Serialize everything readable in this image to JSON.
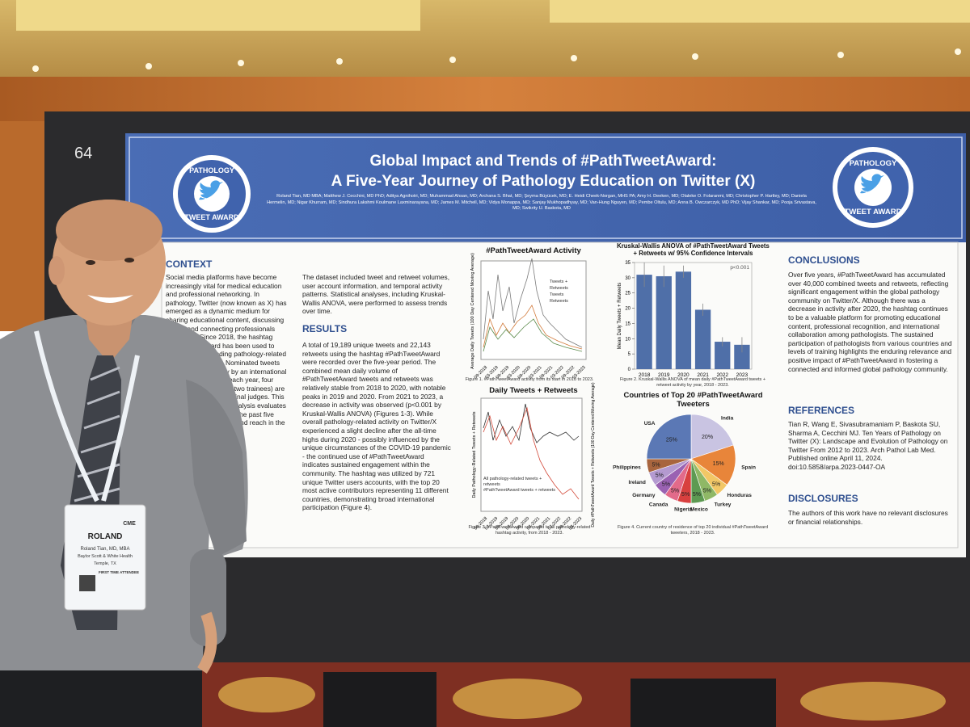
{
  "poster": {
    "number": "64",
    "title_line1": "Global Impact and Trends of #PathTweetAward:",
    "title_line2": "A Five-Year Journey of Pathology Education on Twitter (X)",
    "authors": "Roland Tian, MD MBA; Matthew J. Cecchini, MD PhD; Aditya Agnihotri, MD; Muhammad Ahsan, MD; Archana S. Bhat, MD; Şeyma Büyücek, MD; E. Heidi Cheek-Norgan, MHS PA; Amy H. Deeken, MD; Olaleke O. Folaranmi, MD; Christopher P. Hartley, MD; Daniela Hermelin, MD; Nigar Khurram, MD; Sindhura Lakshmi Koulmane Laxminarayana, MD; James M. Mitchell, MD; Vidya Monappa, MD; Sanjay Mukhopadhyay, MD; Van-Hung Nguyen, MD; Pembe Oltulu, MD; Anna B. Owczarczyk, MD PhD; Vijay Shankar, MD; Pooja Srivastava, MD; Swikrity U. Baskota, MD",
    "logo_top": "PATHOLOGY",
    "logo_bottom": "TWEET AWARD"
  },
  "sections": {
    "context_head": "CONTEXT",
    "context_text": "Social media platforms have become increasingly vital for medical education and professional networking. In pathology, Twitter (now known as X) has emerged as a dynamic medium for sharing educational content, discussing cases, and connecting professionals worldwide. Since 2018, the hashtag #PathTweetAward has been used to recognize outstanding pathology-related educational tweets. Nominated tweets are evaluated weekly by an international panel of judges, and each year, four winners (category and two trainees) are selected by a panel of final judges. This comprehensive trend analysis evaluates #PathTweetAward over the past five years, its global impact and reach in the pathology community.",
    "methods_text": "The dataset included tweet and retweet volumes, user account information, and temporal activity patterns. Statistical analyses, including Kruskal-Wallis ANOVA, were performed to assess trends over time.",
    "results_head": "RESULTS",
    "results_text": "A total of 19,189 unique tweets and 22,143 retweets using the hashtag #PathTweetAward were recorded over the five-year period. The combined mean daily volume of #PathTweetAward tweets and retweets was relatively stable from 2018 to 2020, with notable peaks in 2019 and 2020. From 2021 to 2023, a decrease in activity was observed (p<0.001 by Kruskal-Wallis ANOVA) (Figures 1-3). While overall pathology-related activity on Twitter/X experienced a slight decline after the all-time highs during 2020 - possibly influenced by the unique circumstances of the COVID-19 pandemic - the continued use of #PathTweetAward indicates sustained engagement within the community. The hashtag was utilized by 721 unique Twitter users accounts, with the top 20 most active contributors representing 11 different countries, demonstrating broad international participation (Figure 4).",
    "conclusions_head": "CONCLUSIONS",
    "conclusions_text": "Over five years, #PathTweetAward has accumulated over 40,000 combined tweets and retweets, reflecting significant engagement within the global pathology community on Twitter/X. Although there was a decrease in activity after 2020, the hashtag continues to be a valuable platform for promoting educational content, professional recognition, and international collaboration among pathologists. The sustained participation of pathologists from various countries and levels of training highlights the enduring relevance and positive impact of #PathTweetAward in fostering a connected and informed global pathology community.",
    "references_head": "REFERENCES",
    "references_text": "Tian R, Wang E, Sivasubramaniam P, Baskota SU, Sharma A, Cecchini MJ. Ten Years of Pathology on Twitter (X): Landscape and Evolution of Pathology on Twitter From 2012 to 2023. Arch Pathol Lab Med. Published online April 11, 2024. doi:10.5858/arpa.2023-0447-OA",
    "disclosures_head": "DISCLOSURES",
    "disclosures_text": "The authors of this work have no relevant disclosures or financial relationships."
  },
  "figures": {
    "fig1_title": "#PathTweetAward Activity",
    "fig1_ylabel": "Average Daily Tweets (100 Day Centered Moving Average)",
    "fig1_legend": [
      "Tweets + Retweets",
      "Tweets",
      "Retweets"
    ],
    "fig1_caption": "Figure 1. #PathTweetAward activity from its start in 2018 to 2023.",
    "date_labels": [
      "09-2018",
      "03-2019",
      "09-2019",
      "03-2020",
      "09-2020",
      "03-2021",
      "09-2021",
      "03-2022",
      "09-2022",
      "03-2023"
    ],
    "fig3_title": "Daily Tweets + Retweets",
    "fig3_ylabel": "Daily Pathology-Related Tweets + Retweets",
    "fig3_y2label": "Daily #PathTweetAward Tweets + Retweets (100 Day Centered Moving Average)",
    "fig3_legend": [
      "All pathology-related tweets + retweets",
      "#PathTweetAward tweets + retweets"
    ],
    "fig3_caption": "Figure 3. #PathTweetAward compared to all pathology-related hashtag activity, from 2018 - 2023.",
    "fig2_caption": "Figure 2. Kruskal-Wallis ANOVA of mean daily #PathTweetAward tweets + retweet activity by year, 2018 - 2023.",
    "fig4_caption": "Figure 4. Current country of residence of top 20 individual #PathTweetAward tweeters, 2018 - 2023."
  },
  "chart_data": [
    {
      "type": "bar",
      "title": "Kruskal-Wallis ANOVA of #PathTweetAward Tweets + Retweets w/ 95% Confidence Intervals",
      "ylabel": "Mean Daily Tweets + Retweets",
      "annotation": "p<0.001",
      "categories": [
        "2018",
        "2019",
        "2020",
        "2021",
        "2022",
        "2023"
      ],
      "values": [
        31,
        30.5,
        32,
        19.5,
        9,
        8
      ],
      "errors": [
        4,
        3.5,
        2,
        2,
        1.5,
        2.5
      ],
      "color": "#4f6fa8",
      "ylim": [
        0,
        35
      ],
      "yticks": [
        0,
        5,
        10,
        15,
        20,
        25,
        30,
        35
      ]
    },
    {
      "type": "pie",
      "title": "Countries of Top 20 #PathTweetAward Tweeters",
      "categories": [
        "India",
        "Spain",
        "Honduras",
        "Turkey",
        "Mexico",
        "Nigeria",
        "Canada",
        "Germany",
        "Ireland",
        "Philippines",
        "USA"
      ],
      "values": [
        20,
        15,
        5,
        5,
        5,
        5,
        5,
        5,
        5,
        5,
        25
      ],
      "value_labels": [
        "20%",
        "15%",
        "5%",
        "5%",
        "5%",
        "5%",
        "5%",
        "5%",
        "5%",
        "5%",
        "25%"
      ],
      "colors": [
        "#c9c4e2",
        "#e8853a",
        "#f2c766",
        "#8fb866",
        "#5d9a52",
        "#d8403f",
        "#e26a8a",
        "#9a62b2",
        "#b49ad0",
        "#a8653e",
        "#5b78b5"
      ]
    }
  ],
  "badge": {
    "tag": "CME",
    "name": "ROLAND",
    "line1": "Roland Tian, MD, MBA",
    "line2": "Baylor Scott & White Health",
    "line3": "Temple, TX",
    "attendee": "FIRST TIME ATTENDEE"
  }
}
